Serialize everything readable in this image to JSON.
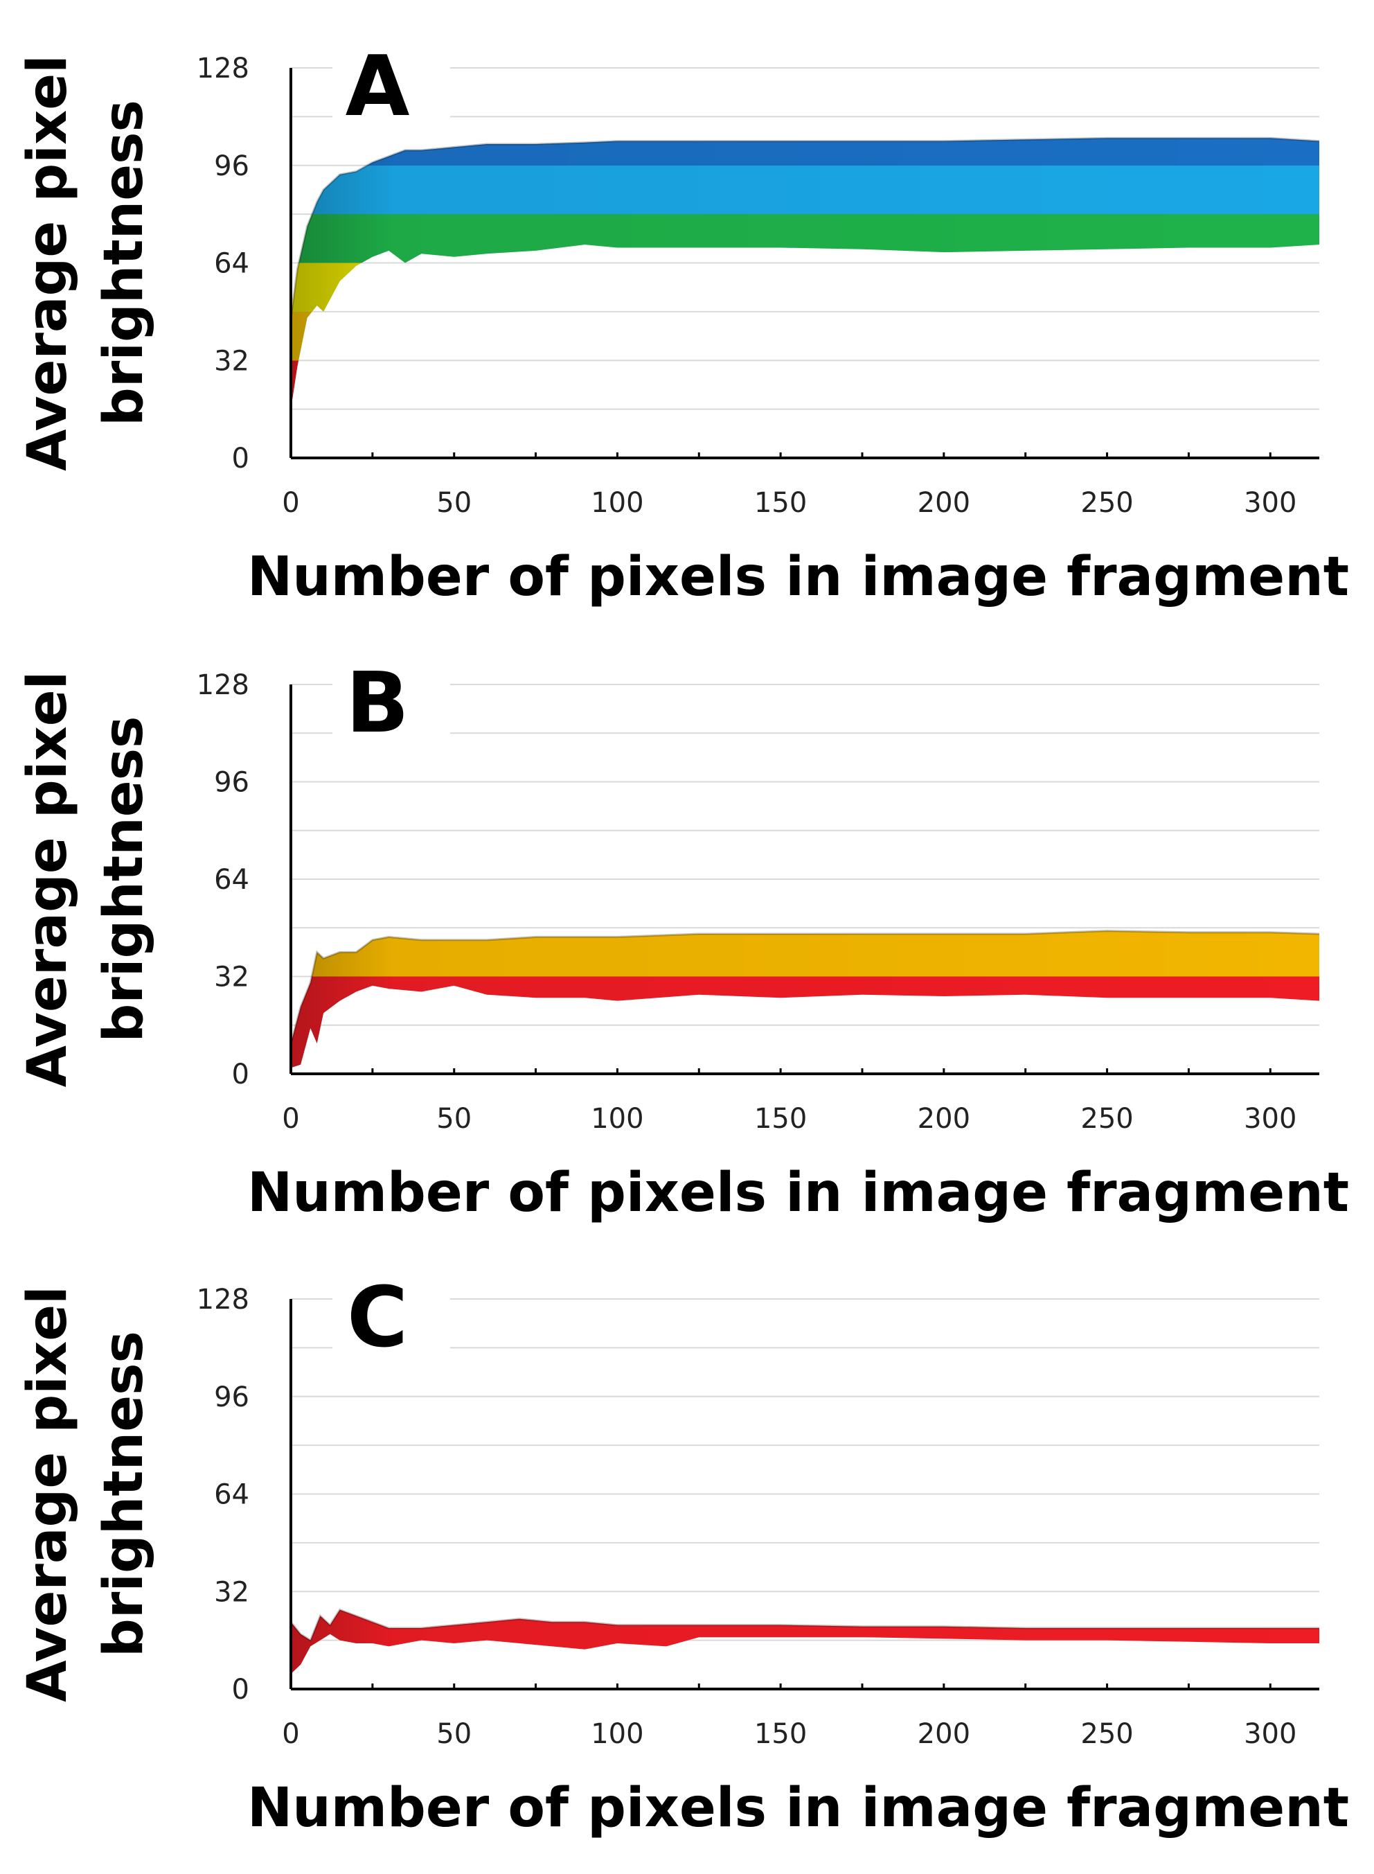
{
  "figure": {
    "panels": [
      {
        "label": "A"
      },
      {
        "label": "B"
      },
      {
        "label": "C"
      }
    ]
  },
  "chart_data": [
    {
      "type": "area",
      "panel_label": "A",
      "xlabel": "Number of pixels in image fragment",
      "ylabel": "Average pixel brightness",
      "xlim": [
        0,
        315
      ],
      "ylim": [
        0,
        128
      ],
      "x_ticks": [
        "0",
        "50",
        "100",
        "150",
        "200",
        "250",
        "300"
      ],
      "y_ticks": [
        "0",
        "32",
        "64",
        "96",
        "128"
      ],
      "grid": true,
      "band_colors": [
        {
          "from": 0,
          "to": 32,
          "color": "#ee1c24"
        },
        {
          "from": 32,
          "to": 48,
          "color": "#f2c200"
        },
        {
          "from": 48,
          "to": 64,
          "color": "#e6e200"
        },
        {
          "from": 64,
          "to": 80,
          "color": "#1fb24a"
        },
        {
          "from": 80,
          "to": 96,
          "color": "#1aa7e6"
        },
        {
          "from": 96,
          "to": 128,
          "color": "#1a6fc4"
        }
      ],
      "series": [
        {
          "x": [
            0,
            2,
            5,
            8,
            10,
            15,
            20,
            25,
            30,
            35,
            40,
            50,
            60,
            75,
            90,
            100,
            125,
            150,
            175,
            200,
            225,
            250,
            275,
            300,
            315
          ],
          "upper": [
            46,
            62,
            76,
            84,
            88,
            93,
            94,
            97,
            99,
            101,
            101,
            102,
            103,
            103,
            103.5,
            104,
            104,
            104,
            104,
            104,
            104.5,
            105,
            105,
            105,
            104
          ],
          "lower": [
            16,
            30,
            46,
            50,
            48,
            58,
            63,
            66,
            68,
            64,
            67,
            66,
            67,
            68,
            70,
            69,
            69,
            69,
            68.5,
            67.5,
            68,
            68.5,
            69,
            69,
            70
          ]
        }
      ]
    },
    {
      "type": "area",
      "panel_label": "B",
      "xlabel": "Number of pixels in image fragment",
      "ylabel": "Average pixel brightness",
      "xlim": [
        0,
        315
      ],
      "ylim": [
        0,
        128
      ],
      "x_ticks": [
        "0",
        "50",
        "100",
        "150",
        "200",
        "250",
        "300"
      ],
      "y_ticks": [
        "0",
        "32",
        "64",
        "96",
        "128"
      ],
      "grid": true,
      "band_colors": [
        {
          "from": 0,
          "to": 32,
          "color": "#ee1c24"
        },
        {
          "from": 32,
          "to": 64,
          "color": "#f2b600"
        }
      ],
      "series": [
        {
          "x": [
            0,
            3,
            6,
            8,
            10,
            15,
            20,
            25,
            30,
            40,
            50,
            60,
            75,
            90,
            100,
            125,
            150,
            175,
            200,
            225,
            250,
            275,
            300,
            315
          ],
          "upper": [
            10,
            22,
            30,
            40,
            38,
            40,
            40,
            44,
            45,
            44,
            44,
            44,
            45,
            45,
            45,
            46,
            46,
            46,
            46,
            46,
            47,
            46.5,
            46.5,
            46
          ],
          "lower": [
            2,
            3,
            15,
            10,
            20,
            24,
            27,
            29,
            28,
            27,
            29,
            26,
            25,
            25,
            24,
            26,
            25,
            26,
            25.5,
            26,
            25,
            25,
            25,
            24
          ]
        }
      ]
    },
    {
      "type": "area",
      "panel_label": "C",
      "xlabel": "Number of pixels in image fragment",
      "ylabel": "Average pixel brightness",
      "xlim": [
        0,
        315
      ],
      "ylim": [
        0,
        128
      ],
      "x_ticks": [
        "0",
        "50",
        "100",
        "150",
        "200",
        "250",
        "300"
      ],
      "y_ticks": [
        "0",
        "32",
        "64",
        "96",
        "128"
      ],
      "grid": true,
      "band_colors": [
        {
          "from": 0,
          "to": 32,
          "color": "#ee1c24"
        }
      ],
      "series": [
        {
          "x": [
            0,
            3,
            6,
            9,
            12,
            15,
            20,
            25,
            30,
            40,
            50,
            60,
            70,
            80,
            90,
            100,
            115,
            125,
            150,
            175,
            200,
            225,
            250,
            275,
            300,
            315
          ],
          "upper": [
            22,
            18,
            16,
            24,
            21,
            26,
            24,
            22,
            20,
            20,
            21,
            22,
            23,
            22,
            22,
            21,
            21,
            21,
            21,
            20.5,
            20.5,
            20,
            20,
            20,
            20,
            20
          ],
          "lower": [
            5,
            8,
            14,
            16,
            18,
            16,
            15,
            15,
            14,
            16,
            15,
            16,
            15,
            14,
            13,
            15,
            14,
            17,
            17,
            17,
            16.5,
            16,
            16,
            15.5,
            15,
            15
          ]
        }
      ]
    }
  ]
}
